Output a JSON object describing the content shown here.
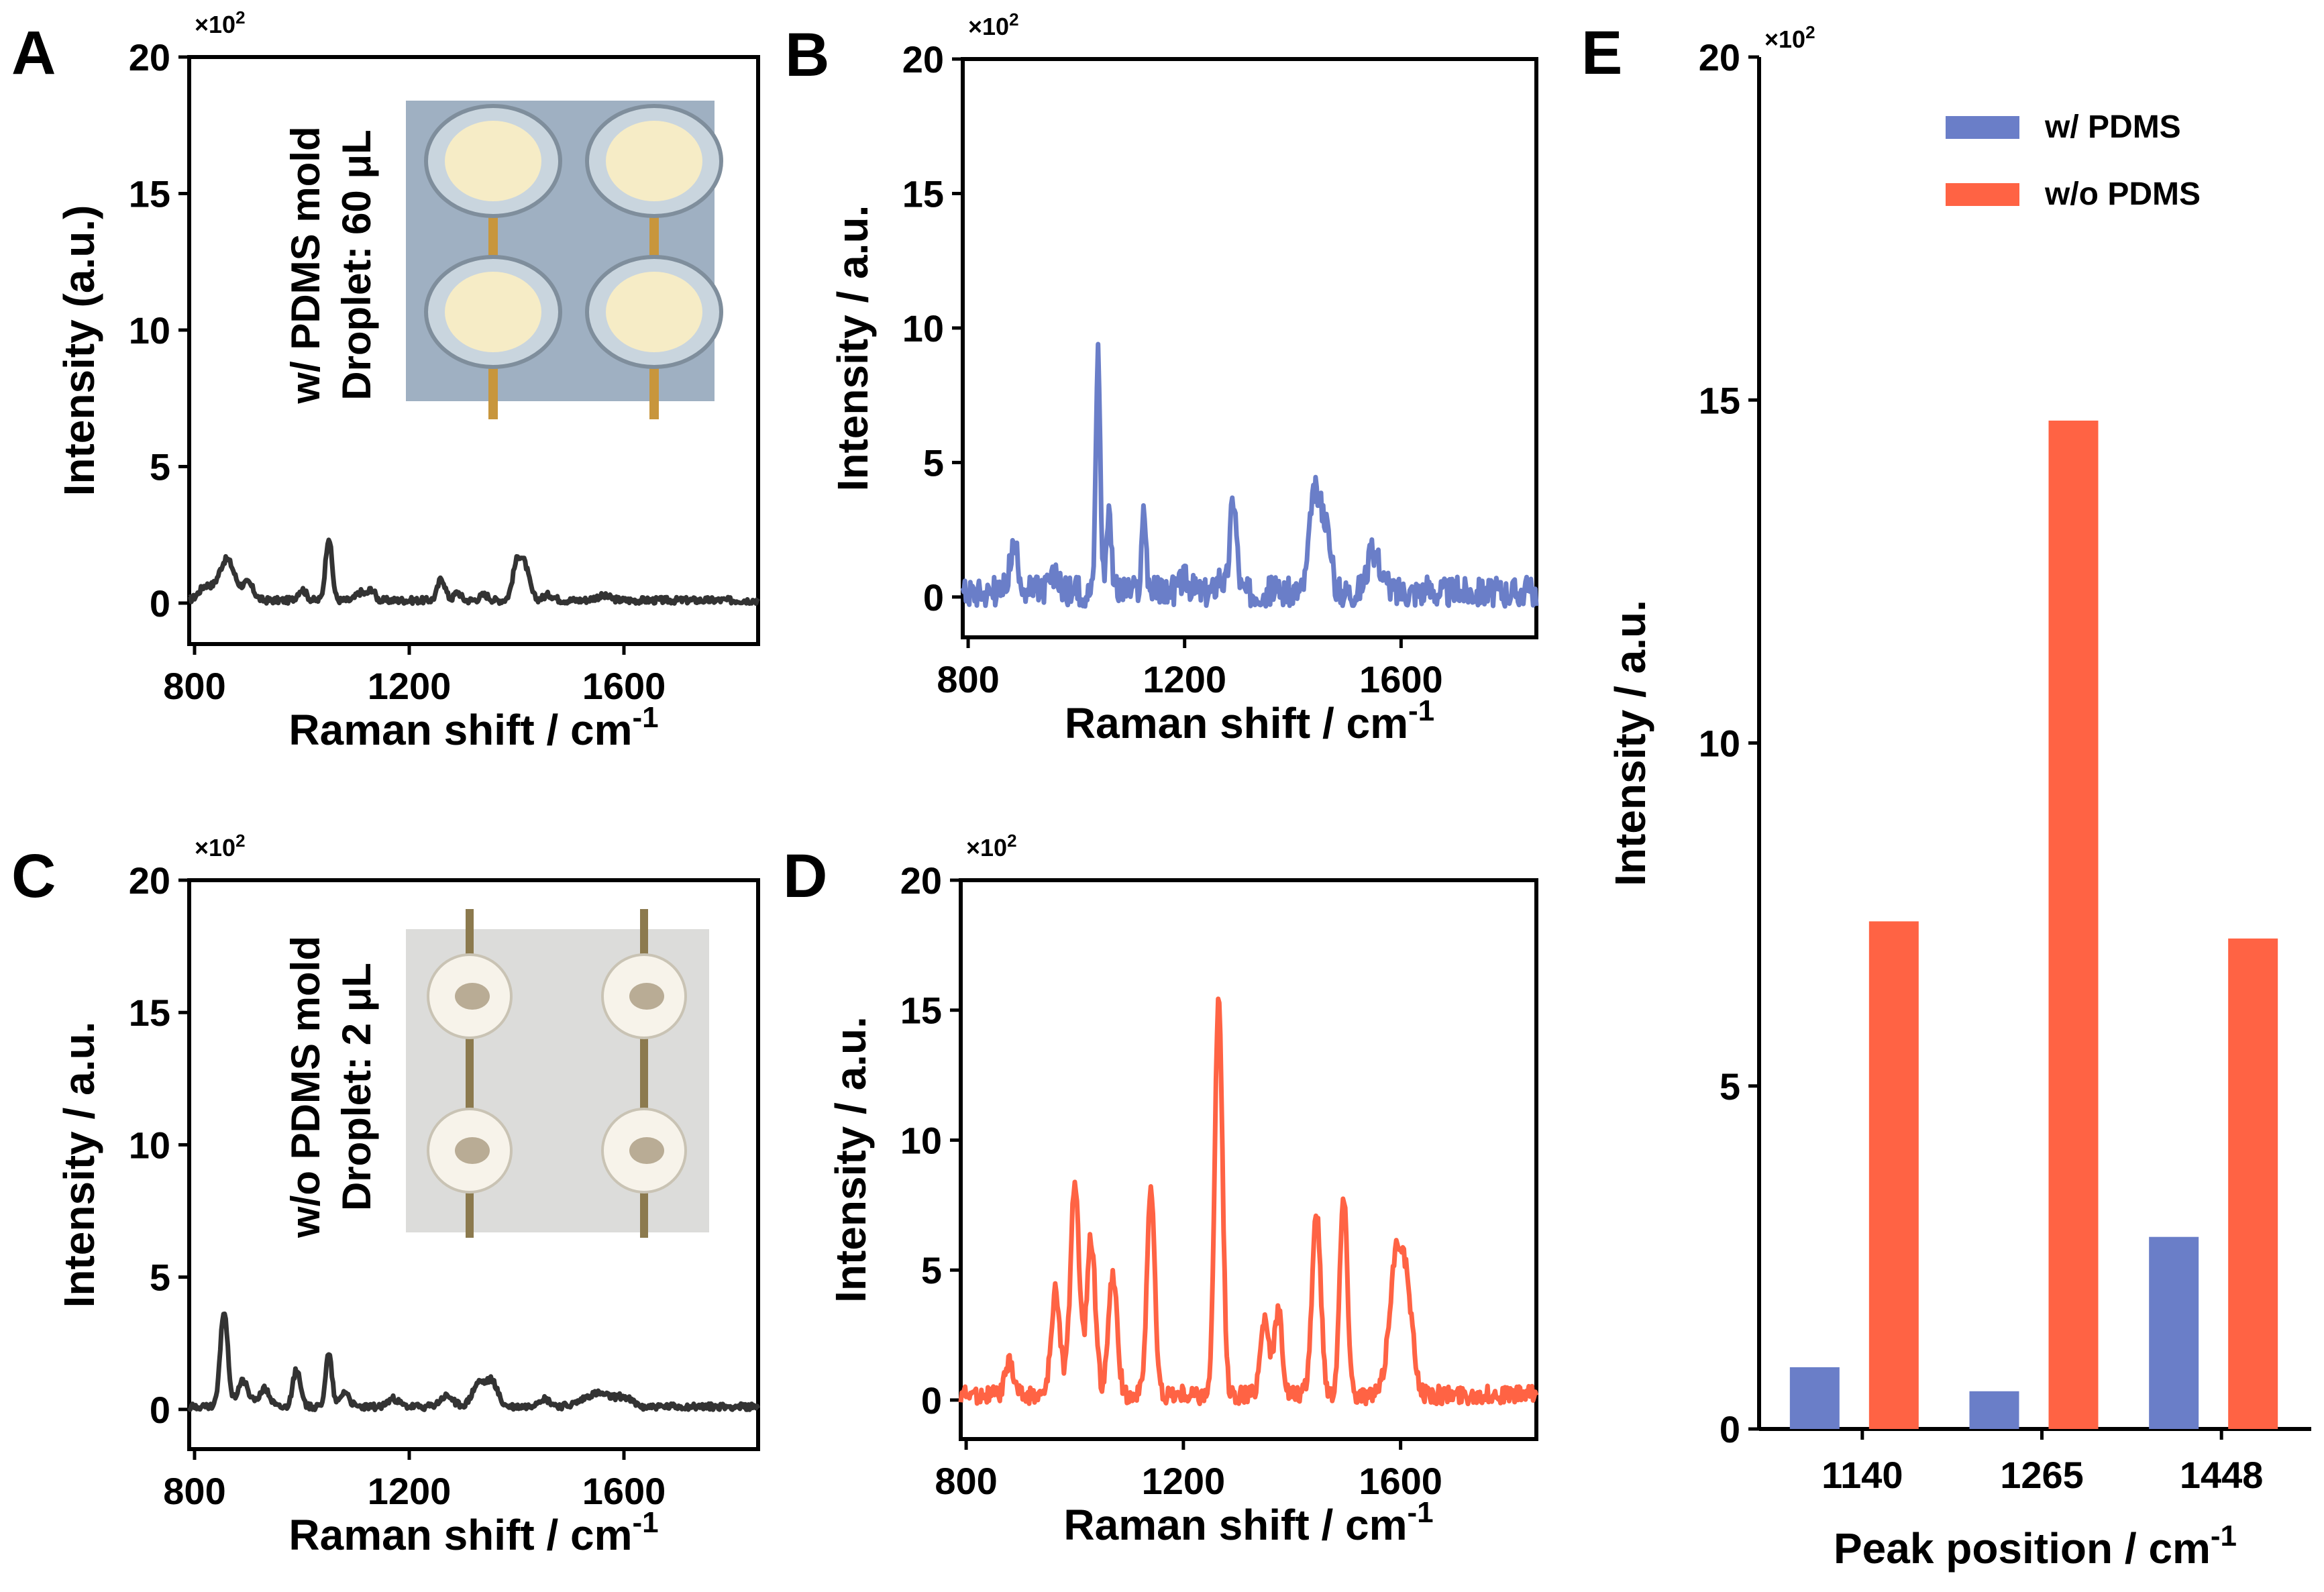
{
  "colors": {
    "gray": "#333333",
    "blue": "#6A7EC8",
    "orange": "#FF6344",
    "axis": "#000000"
  },
  "chart_data": [
    {
      "id": "A",
      "type": "line",
      "panel_label": "A",
      "xlabel": "Raman shift / cm",
      "xlabel_sup": "-1",
      "ylabel": "Intensity (a.u.)",
      "multiplier_base": "×10",
      "multiplier_exp": "2",
      "xlim": [
        790,
        1850
      ],
      "ylim": [
        -1.5,
        20
      ],
      "xticks": [
        800,
        1200,
        1600
      ],
      "yticks": [
        0,
        5,
        10,
        15,
        20
      ],
      "inset_lines": [
        "w/ PDMS mold",
        "Droplet: 60 μL"
      ],
      "inset_photo": "photo of four gold electrodes with circular PDMS wells",
      "series": [
        {
          "name": "w/ PDMS mold, 60 μL",
          "color": "#333333",
          "noise": 0.12,
          "baseline": 0.1,
          "peaks": [
            [
              820,
              0.5,
              12
            ],
            [
              860,
              1.5,
              15
            ],
            [
              900,
              0.6,
              10
            ],
            [
              1000,
              0.4,
              8
            ],
            [
              1050,
              2.3,
              6
            ],
            [
              1110,
              0.3,
              8
            ],
            [
              1130,
              0.4,
              6
            ],
            [
              1260,
              0.8,
              7
            ],
            [
              1290,
              0.3,
              6
            ],
            [
              1340,
              0.2,
              8
            ],
            [
              1400,
              1.2,
              8
            ],
            [
              1415,
              1.2,
              9
            ],
            [
              1460,
              0.2,
              10
            ],
            [
              1560,
              0.15,
              15
            ]
          ]
        }
      ]
    },
    {
      "id": "B",
      "type": "line",
      "panel_label": "B",
      "xlabel": "Raman shift / cm",
      "xlabel_sup": "-1",
      "ylabel": "Intensity / a.u.",
      "multiplier_base": "×10",
      "multiplier_exp": "2",
      "xlim": [
        790,
        1850
      ],
      "ylim": [
        -1.5,
        20
      ],
      "xticks": [
        800,
        1200,
        1600
      ],
      "yticks": [
        0,
        5,
        10,
        15,
        20
      ],
      "series": [
        {
          "name": "w/ PDMS",
          "color": "#6A7EC8",
          "noise": 0.55,
          "baseline": 0.2,
          "peaks": [
            [
              885,
              1.6,
              8
            ],
            [
              960,
              0.5,
              10
            ],
            [
              1040,
              9.0,
              4
            ],
            [
              1060,
              3.0,
              5
            ],
            [
              1125,
              3.0,
              4
            ],
            [
              1200,
              0.5,
              8
            ],
            [
              1290,
              3.5,
              6
            ],
            [
              1265,
              0.6,
              6
            ],
            [
              1440,
              3.5,
              9
            ],
            [
              1460,
              2.5,
              9
            ],
            [
              1550,
              1.5,
              12
            ]
          ]
        }
      ]
    },
    {
      "id": "C",
      "type": "line",
      "panel_label": "C",
      "xlabel": "Raman shift / cm",
      "xlabel_sup": "-1",
      "ylabel": "Intensity / a.u.",
      "multiplier_base": "×10",
      "multiplier_exp": "2",
      "xlim": [
        790,
        1850
      ],
      "ylim": [
        -1.5,
        20
      ],
      "xticks": [
        800,
        1200,
        1600
      ],
      "yticks": [
        0,
        5,
        10,
        15,
        20
      ],
      "inset_lines": [
        "w/o PDMS mold",
        "Droplet: 2 μL"
      ],
      "inset_photo": "photo of four white circular electrodes with small droplets",
      "series": [
        {
          "name": "w/o PDMS mold, 2 μL",
          "color": "#333333",
          "noise": 0.12,
          "baseline": 0.1,
          "peaks": [
            [
              855,
              3.6,
              7
            ],
            [
              890,
              1.0,
              10
            ],
            [
              930,
              0.7,
              10
            ],
            [
              990,
              1.4,
              7
            ],
            [
              1050,
              2.0,
              6
            ],
            [
              1080,
              0.6,
              8
            ],
            [
              1170,
              0.3,
              10
            ],
            [
              1270,
              0.4,
              12
            ],
            [
              1330,
              0.9,
              12
            ],
            [
              1355,
              0.9,
              10
            ],
            [
              1450,
              0.3,
              12
            ],
            [
              1550,
              0.5,
              25
            ],
            [
              1600,
              0.3,
              15
            ]
          ]
        }
      ]
    },
    {
      "id": "D",
      "type": "line",
      "panel_label": "D",
      "xlabel": "Raman shift / cm",
      "xlabel_sup": "-1",
      "ylabel": "Intensity / a.u.",
      "multiplier_base": "×10",
      "multiplier_exp": "2",
      "xlim": [
        790,
        1850
      ],
      "ylim": [
        -1.5,
        20
      ],
      "xticks": [
        800,
        1200,
        1600
      ],
      "yticks": [
        0,
        5,
        10,
        15,
        20
      ],
      "series": [
        {
          "name": "w/o PDMS",
          "color": "#FF6344",
          "noise": 0.35,
          "baseline": 0.2,
          "peaks": [
            [
              880,
              1.2,
              8
            ],
            [
              965,
              4.0,
              8
            ],
            [
              1000,
              8.2,
              8
            ],
            [
              1030,
              6.0,
              8
            ],
            [
              1070,
              4.5,
              8
            ],
            [
              1140,
              8.0,
              7
            ],
            [
              1265,
              15.2,
              7
            ],
            [
              1350,
              3.0,
              8
            ],
            [
              1375,
              3.3,
              7
            ],
            [
              1445,
              7.0,
              8
            ],
            [
              1495,
              7.6,
              7
            ],
            [
              1590,
              4.5,
              12
            ],
            [
              1610,
              3.8,
              12
            ]
          ]
        }
      ]
    },
    {
      "id": "E",
      "type": "bar",
      "panel_label": "E",
      "xlabel": "Peak position / cm",
      "xlabel_sup": "-1",
      "ylabel": "Intensity / a.u.",
      "multiplier_base": "×10",
      "multiplier_exp": "2",
      "ylim": [
        0,
        20
      ],
      "yticks": [
        0,
        5,
        10,
        15,
        20
      ],
      "categories": [
        "1140",
        "1265",
        "1448"
      ],
      "series": [
        {
          "name": "w/ PDMS",
          "color": "#6A7EC8",
          "values": [
            0.9,
            0.55,
            2.8
          ]
        },
        {
          "name": "w/o PDMS",
          "color": "#FF6344",
          "values": [
            7.4,
            14.7,
            7.15
          ]
        }
      ],
      "legend": "top-right"
    }
  ]
}
